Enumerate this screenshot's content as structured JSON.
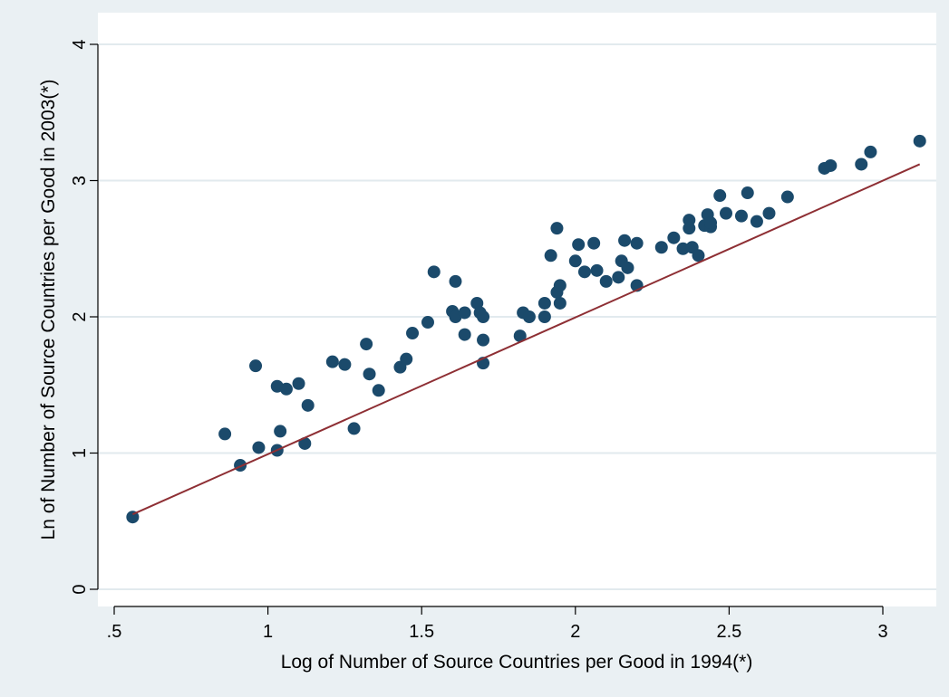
{
  "chart_data": {
    "type": "scatter",
    "title": "",
    "xlabel": "Log of Number of Source Countries per Good in 1994(*)",
    "ylabel": "Ln of Number of Source Countries per Good in 2003(*)",
    "xlim": [
      0.5,
      3.1
    ],
    "ylim": [
      0,
      4
    ],
    "xticks": [
      0.5,
      1,
      1.5,
      2,
      2.5,
      3
    ],
    "xtick_labels": [
      ".5",
      "1",
      "1.5",
      "2",
      "2.5",
      "3"
    ],
    "yticks": [
      0,
      1,
      2,
      3,
      4
    ],
    "ytick_labels": [
      "0",
      "1",
      "2",
      "3",
      "4"
    ],
    "grid": "horizontal",
    "colors": {
      "marker": "#1b4a6b",
      "line": "#8e2f34",
      "plot_bg": "#ffffff",
      "page_bg": "#eaf0f3",
      "grid": "#e2eaee"
    },
    "points": [
      [
        0.56,
        0.53
      ],
      [
        0.86,
        1.14
      ],
      [
        0.91,
        0.91
      ],
      [
        0.96,
        1.64
      ],
      [
        0.97,
        1.04
      ],
      [
        1.03,
        1.02
      ],
      [
        1.03,
        1.49
      ],
      [
        1.04,
        1.16
      ],
      [
        1.06,
        1.47
      ],
      [
        1.1,
        1.51
      ],
      [
        1.12,
        1.07
      ],
      [
        1.13,
        1.35
      ],
      [
        1.21,
        1.67
      ],
      [
        1.25,
        1.65
      ],
      [
        1.28,
        1.18
      ],
      [
        1.32,
        1.8
      ],
      [
        1.33,
        1.58
      ],
      [
        1.36,
        1.46
      ],
      [
        1.43,
        1.63
      ],
      [
        1.45,
        1.69
      ],
      [
        1.47,
        1.88
      ],
      [
        1.52,
        1.96
      ],
      [
        1.54,
        2.33
      ],
      [
        1.6,
        2.04
      ],
      [
        1.61,
        2.0
      ],
      [
        1.61,
        2.26
      ],
      [
        1.64,
        2.03
      ],
      [
        1.64,
        1.87
      ],
      [
        1.68,
        2.1
      ],
      [
        1.69,
        2.03
      ],
      [
        1.7,
        2.0
      ],
      [
        1.7,
        1.83
      ],
      [
        1.7,
        1.66
      ],
      [
        1.82,
        1.86
      ],
      [
        1.83,
        2.03
      ],
      [
        1.85,
        2.0
      ],
      [
        1.9,
        2.0
      ],
      [
        1.9,
        2.1
      ],
      [
        1.92,
        2.45
      ],
      [
        1.94,
        2.65
      ],
      [
        1.94,
        2.18
      ],
      [
        1.95,
        2.1
      ],
      [
        1.95,
        2.23
      ],
      [
        2.0,
        2.41
      ],
      [
        2.01,
        2.53
      ],
      [
        2.03,
        2.33
      ],
      [
        2.06,
        2.54
      ],
      [
        2.07,
        2.34
      ],
      [
        2.1,
        2.26
      ],
      [
        2.14,
        2.29
      ],
      [
        2.15,
        2.41
      ],
      [
        2.16,
        2.56
      ],
      [
        2.17,
        2.36
      ],
      [
        2.2,
        2.54
      ],
      [
        2.2,
        2.23
      ],
      [
        2.28,
        2.51
      ],
      [
        2.32,
        2.58
      ],
      [
        2.35,
        2.5
      ],
      [
        2.37,
        2.71
      ],
      [
        2.37,
        2.65
      ],
      [
        2.38,
        2.51
      ],
      [
        2.4,
        2.45
      ],
      [
        2.42,
        2.67
      ],
      [
        2.43,
        2.75
      ],
      [
        2.44,
        2.66
      ],
      [
        2.44,
        2.69
      ],
      [
        2.47,
        2.89
      ],
      [
        2.49,
        2.76
      ],
      [
        2.54,
        2.74
      ],
      [
        2.56,
        2.91
      ],
      [
        2.59,
        2.7
      ],
      [
        2.63,
        2.76
      ],
      [
        2.69,
        2.88
      ],
      [
        2.81,
        3.09
      ],
      [
        2.83,
        3.11
      ],
      [
        2.93,
        3.12
      ],
      [
        2.96,
        3.21
      ],
      [
        3.12,
        3.29
      ]
    ],
    "fit_line": {
      "x": [
        0.56,
        3.12
      ],
      "y": [
        0.55,
        3.12
      ]
    }
  }
}
